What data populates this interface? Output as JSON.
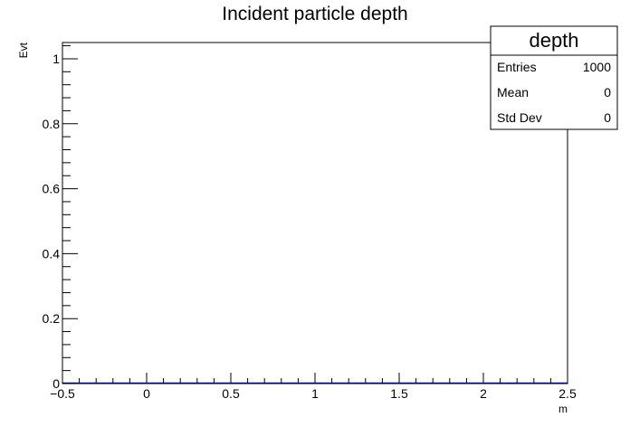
{
  "chart_data": {
    "type": "bar",
    "title": "Incident particle depth",
    "xlabel": "m",
    "ylabel": "Evt",
    "xlim": [
      -0.5,
      2.5
    ],
    "ylim": [
      0,
      1.05
    ],
    "x_ticks": [
      -0.5,
      0,
      0.5,
      1,
      1.5,
      2,
      2.5
    ],
    "x_tick_labels": [
      "−0.5",
      "0",
      "0.5",
      "1",
      "1.5",
      "2",
      "2.5"
    ],
    "y_ticks": [
      0,
      0.2,
      0.4,
      0.6,
      0.8,
      1
    ],
    "y_tick_labels": [
      "0",
      "0.2",
      "0.4",
      "0.6",
      "0.8",
      "1"
    ],
    "series": [
      {
        "values": []
      }
    ],
    "grid": false,
    "legend": "none",
    "stats_box": {
      "title": "depth",
      "rows": [
        {
          "label": "Entries",
          "value": "1000"
        },
        {
          "label": "Mean",
          "value": "0"
        },
        {
          "label": "Std Dev",
          "value": "0"
        }
      ]
    },
    "colors": {
      "axis": "#000000",
      "histogram_line": "#000080"
    }
  }
}
